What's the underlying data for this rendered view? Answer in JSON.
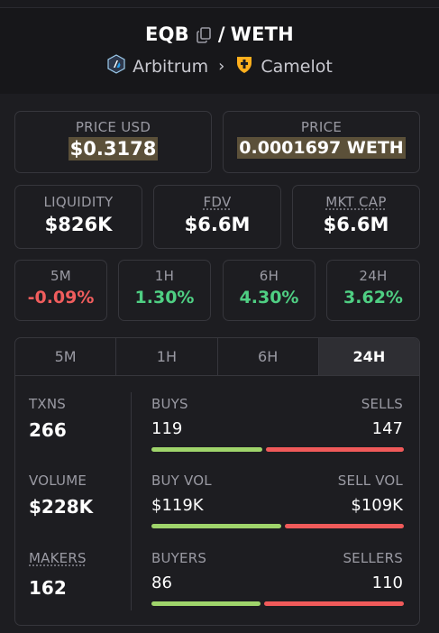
{
  "header": {
    "base_token": "EQB",
    "separator": "/",
    "quote_token": "WETH",
    "chain": "Arbitrum",
    "route_arrow": "›",
    "dex": "Camelot",
    "icons": [
      "copy-icon",
      "arbitrum-logo-icon",
      "camelot-logo-icon",
      "chevron-right-icon"
    ]
  },
  "price": {
    "usd_label": "PRICE USD",
    "usd_value": "$0.3178",
    "native_label": "PRICE",
    "native_value": "0.0001697 WETH"
  },
  "metrics": {
    "liquidity_label": "LIQUIDITY",
    "liquidity_value": "$826K",
    "fdv_label": "FDV",
    "fdv_value": "$6.6M",
    "mktcap_label": "MKT CAP",
    "mktcap_value": "$6.6M"
  },
  "changes": [
    {
      "label": "5M",
      "value": "-0.09%",
      "trend": "negative"
    },
    {
      "label": "1H",
      "value": "1.30%",
      "trend": "positive"
    },
    {
      "label": "6H",
      "value": "4.30%",
      "trend": "positive"
    },
    {
      "label": "24H",
      "value": "3.62%",
      "trend": "positive"
    }
  ],
  "tabs": [
    {
      "label": "5M",
      "active": false
    },
    {
      "label": "1H",
      "active": false
    },
    {
      "label": "6H",
      "active": false
    },
    {
      "label": "24H",
      "active": true
    }
  ],
  "stats": {
    "txns_label": "TXNS",
    "txns_value": "266",
    "volume_label": "VOLUME",
    "volume_value": "$228K",
    "makers_label": "MAKERS",
    "makers_value": "162",
    "buys_label": "BUYS",
    "buys_value": "119",
    "sells_label": "SELLS",
    "sells_value": "147",
    "buy_vol_label": "BUY VOL",
    "buy_vol_value": "$119K",
    "sell_vol_label": "SELL VOL",
    "sell_vol_value": "$109K",
    "buyers_label": "BUYERS",
    "buyers_value": "86",
    "sellers_label": "SELLERS",
    "sellers_value": "110",
    "buys_share": 0.447,
    "buy_vol_share": 0.522,
    "buyers_share": 0.439
  },
  "colors": {
    "positive": "#4fcf83",
    "negative": "#f05d5d",
    "buy_bar": "#9fd46b",
    "sell_bar": "#f05a5a",
    "price_highlight": "#5b5039"
  }
}
